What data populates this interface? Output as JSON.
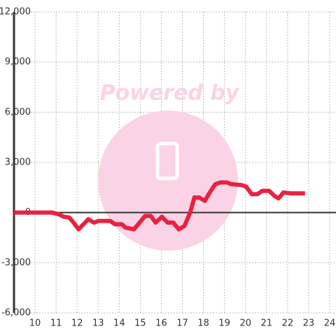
{
  "chart_data": {
    "type": "line",
    "watermark": "Powered by",
    "x": [
      9,
      10.8,
      11.13,
      11.37,
      11.63,
      11.83,
      12.07,
      12.3,
      12.53,
      12.8,
      13.03,
      13.3,
      13.57,
      13.8,
      14.13,
      14.3,
      14.7,
      14.9,
      15.23,
      15.5,
      15.73,
      16.03,
      16.3,
      16.57,
      16.83,
      17.1,
      17.37,
      17.57,
      17.8,
      18.07,
      18.3,
      18.57,
      18.8,
      19.13,
      19.3,
      19.8,
      20.03,
      20.3,
      20.57,
      20.8,
      21.13,
      21.37,
      21.57,
      21.8,
      22.13,
      22.83
    ],
    "series": [
      {
        "color": "#e8223f",
        "values": [
          0,
          0,
          -100,
          -250,
          -300,
          -600,
          -1000,
          -700,
          -400,
          -600,
          -500,
          -500,
          -500,
          -700,
          -700,
          -900,
          -1000,
          -700,
          -200,
          -200,
          -600,
          -250,
          -600,
          -600,
          -1000,
          -800,
          0,
          900,
          900,
          700,
          1200,
          1700,
          1800,
          1800,
          1700,
          1650,
          1550,
          1100,
          1100,
          1300,
          1300,
          1000,
          850,
          1200,
          1150,
          1150
        ]
      }
    ],
    "xlim": [
      9,
      24.3
    ],
    "xticks": [
      10,
      11,
      12,
      13,
      14,
      15,
      16,
      17,
      18,
      19,
      20,
      21,
      22,
      23,
      24
    ],
    "ylim": [
      -6000,
      12000
    ],
    "yticks": [
      {
        "value": -6000,
        "label": "-6,000"
      },
      {
        "value": -3000,
        "label": "-3,000"
      },
      0,
      {
        "value": 3000,
        "label": "3,000"
      },
      {
        "value": 6000,
        "label": "6,000"
      },
      {
        "value": 9000,
        "label": "9,000"
      },
      {
        "value": 12000,
        "label": "12,000"
      }
    ],
    "grid": true
  }
}
